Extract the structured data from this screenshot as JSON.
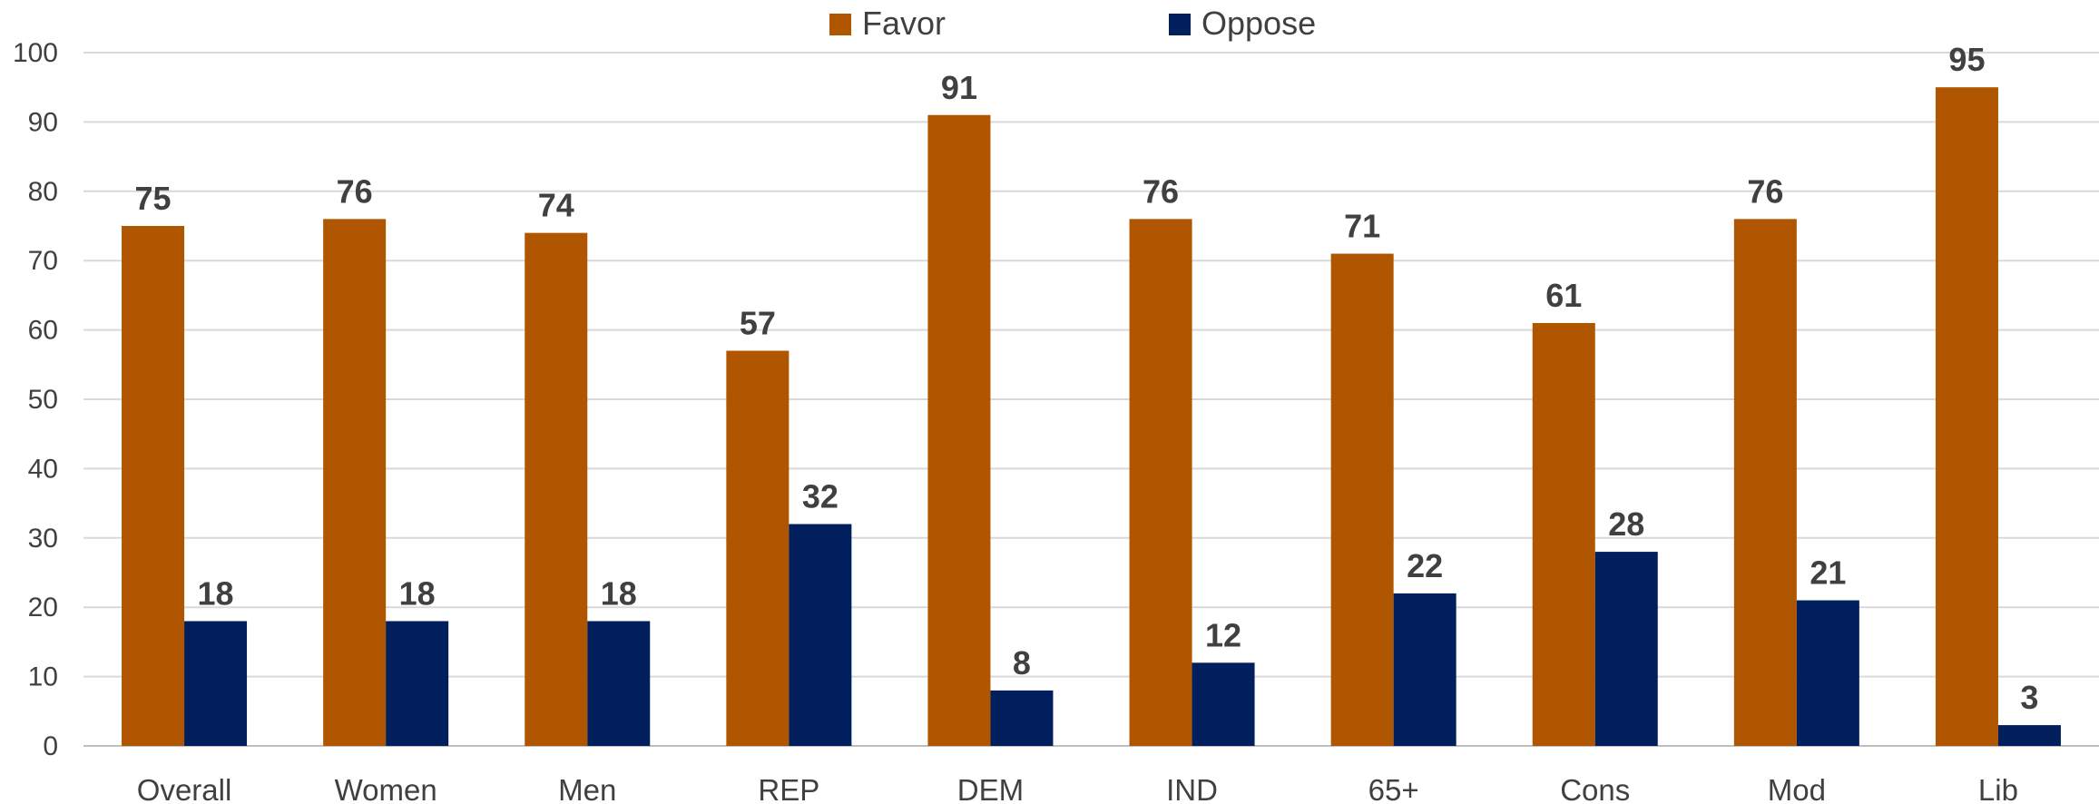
{
  "chart_data": {
    "type": "bar",
    "categories": [
      "Overall",
      "Women",
      "Men",
      "REP",
      "DEM",
      "IND",
      "65+",
      "Cons",
      "Mod",
      "Lib"
    ],
    "series": [
      {
        "name": "Favor",
        "color": "#b05500",
        "values": [
          75,
          76,
          74,
          57,
          91,
          76,
          71,
          61,
          76,
          95
        ]
      },
      {
        "name": "Oppose",
        "color": "#001f5c",
        "values": [
          18,
          18,
          18,
          32,
          8,
          12,
          22,
          28,
          21,
          3
        ]
      }
    ],
    "ylim": [
      0,
      100
    ],
    "yticks": [
      0,
      10,
      20,
      30,
      40,
      50,
      60,
      70,
      80,
      90,
      100
    ],
    "grid": true,
    "legend_position": "top-center",
    "data_labels": true
  }
}
